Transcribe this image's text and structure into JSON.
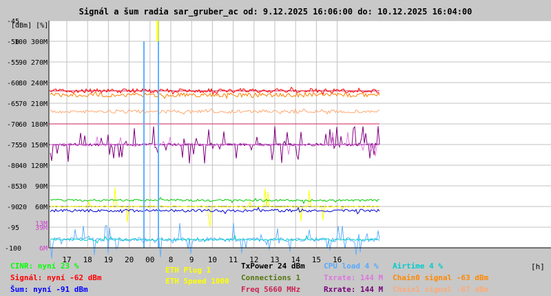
{
  "title": "Signál a šum radia sar_gruber_ac od: 9.12.2025 16:06:00 do: 10.12.2025 16:04:00",
  "chart_data": {
    "type": "line",
    "title": "Signál a šum radia sar_gruber_ac od: 9.12.2025 16:06:00 do: 10.12.2025 16:04:00",
    "y_dbm_ticks": [
      "-45",
      "-50",
      "-55",
      "-60",
      "-65",
      "-70",
      "-75",
      "-80",
      "-85",
      "-90",
      "-95",
      "-100"
    ],
    "y_pct_ticks": [
      "",
      "100",
      "90",
      "80",
      "70",
      "60",
      "50",
      "40",
      "30",
      "20",
      "",
      ""
    ],
    "y_rate_ticks": [
      "",
      "300M",
      "270M",
      "240M",
      "210M",
      "180M",
      "150M",
      "120M",
      "90M",
      "60M",
      "39M",
      "6M"
    ],
    "y_extra_ticks": [
      {
        "label": "13M",
        "value": 12
      }
    ],
    "y_unit_label": "[dBm] [%]",
    "x_unit_label": "[h]",
    "ylim_dbm": [
      -100,
      -45
    ],
    "x_ticks": [
      "17",
      "18",
      "19",
      "20",
      "00",
      "8",
      "9",
      "10",
      "11",
      "12",
      "13",
      "14",
      "15",
      "16"
    ],
    "grid": true,
    "series": [
      {
        "name": "Signál",
        "color": "#ff0000",
        "value_dbm": -62
      },
      {
        "name": "Chain0 signal",
        "color": "#ff8000",
        "value_dbm": -63
      },
      {
        "name": "Chain1 signal",
        "color": "#ffa870",
        "value_dbm": -67
      },
      {
        "name": "Šum",
        "color": "#0000cc",
        "value_dbm": -91
      },
      {
        "name": "CINR",
        "color": "#00cc00",
        "value_pct": 23
      },
      {
        "name": "CPU load",
        "color": "#60b0ff",
        "value_pct": 4
      },
      {
        "name": "Airtime",
        "color": "#00cccc",
        "value_pct": 4
      },
      {
        "name": "Txrate",
        "color": "#e080e0",
        "value": "144 M"
      },
      {
        "name": "Rxrate",
        "color": "#800080",
        "value": "144 M"
      },
      {
        "name": "ETH Speed",
        "color": "#ffff00",
        "value": "1000"
      },
      {
        "name": "ETH Plug",
        "color": "#ffff00",
        "value": "1"
      }
    ]
  },
  "legend": [
    {
      "text": "CINR: nyní 23 %",
      "color": "#00ff00"
    },
    {
      "text": "Signál: nyní -62 dBm",
      "color": "#ff0000"
    },
    {
      "text": "Šum: nyní -91 dBm",
      "color": "#0000ff"
    },
    {
      "text": "ETH Plug 1",
      "color": "#ffff00"
    },
    {
      "text": "ETH Speed 1000",
      "color": "#ffff00"
    },
    {
      "text": "TxPower 24 dBm",
      "color": "#000000"
    },
    {
      "text": "Connections 1",
      "color": "#557711"
    },
    {
      "text": "Freq 5660 MHz",
      "color": "#cc2255"
    },
    {
      "text": "CPU load 4 %",
      "color": "#55aaff"
    },
    {
      "text": "Txrate: 144 M",
      "color": "#dd77dd"
    },
    {
      "text": "Rxrate: 144 M",
      "color": "#770077"
    },
    {
      "text": "Airtime 4 %",
      "color": "#00cccc"
    },
    {
      "text": "Chain0 signal -63 dBm",
      "color": "#ff8800"
    },
    {
      "text": "Chain1 signal -67 dBm",
      "color": "#ffaa77"
    }
  ]
}
